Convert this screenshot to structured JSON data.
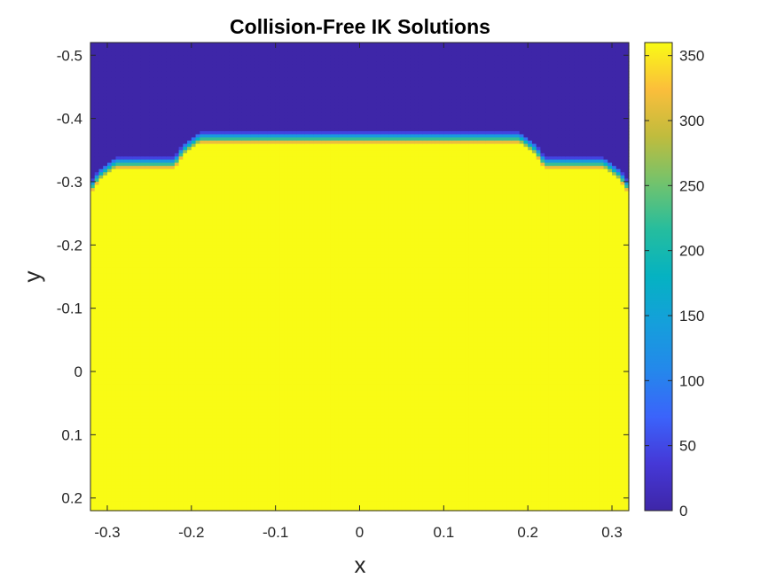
{
  "chart_data": {
    "type": "heatmap",
    "title": "Collision-Free IK Solutions",
    "xlabel": "x",
    "ylabel": "y",
    "xlim": [
      -0.32,
      0.32
    ],
    "ylim": [
      -0.52,
      0.22
    ],
    "y_direction": "reverse",
    "x_ticks": [
      -0.3,
      -0.2,
      -0.1,
      0,
      0.1,
      0.2,
      0.3
    ],
    "x_tick_labels": [
      "-0.3",
      "-0.2",
      "-0.1",
      "0",
      "0.1",
      "0.2",
      "0.3"
    ],
    "y_ticks": [
      -0.5,
      -0.4,
      -0.3,
      -0.2,
      -0.1,
      0,
      0.1,
      0.2
    ],
    "y_tick_labels": [
      "-0.5",
      "-0.4",
      "-0.3",
      "-0.2",
      "-0.1",
      "0",
      "0.1",
      "0.2"
    ],
    "colormap": "parula",
    "colorbar": {
      "range": [
        0,
        360
      ],
      "ticks": [
        0,
        50,
        100,
        150,
        200,
        250,
        300,
        350
      ],
      "tick_labels": [
        "0",
        "50",
        "100",
        "150",
        "200",
        "250",
        "300",
        "350"
      ],
      "stops": [
        {
          "v": 0.0,
          "color": "#3e26a8"
        },
        {
          "v": 0.1,
          "color": "#4538d7"
        },
        {
          "v": 0.2,
          "color": "#3b63fb"
        },
        {
          "v": 0.3,
          "color": "#2488eb"
        },
        {
          "v": 0.4,
          "color": "#159fdb"
        },
        {
          "v": 0.5,
          "color": "#05b2c2"
        },
        {
          "v": 0.6,
          "color": "#25bd9e"
        },
        {
          "v": 0.7,
          "color": "#72c36d"
        },
        {
          "v": 0.8,
          "color": "#c0bc3d"
        },
        {
          "v": 0.9,
          "color": "#fbbe3b"
        },
        {
          "v": 1.0,
          "color": "#f9fb15"
        }
      ]
    },
    "grid": {
      "x_min": -0.32,
      "x_max": 0.32,
      "nx": 128,
      "y_min": -0.52,
      "y_max": 0.22,
      "ny": 148
    },
    "value_low": 0,
    "value_high": 360,
    "transition_width": 0.02,
    "boundary_x": [
      -0.32,
      -0.31,
      -0.29,
      -0.22,
      -0.21,
      -0.19,
      0,
      0.19,
      0.21,
      0.22,
      0.29,
      0.31,
      0.32
    ],
    "boundary_y": [
      -0.3,
      -0.32,
      -0.34,
      -0.34,
      -0.36,
      -0.38,
      -0.38,
      -0.38,
      -0.36,
      -0.34,
      -0.34,
      -0.32,
      -0.3
    ]
  }
}
